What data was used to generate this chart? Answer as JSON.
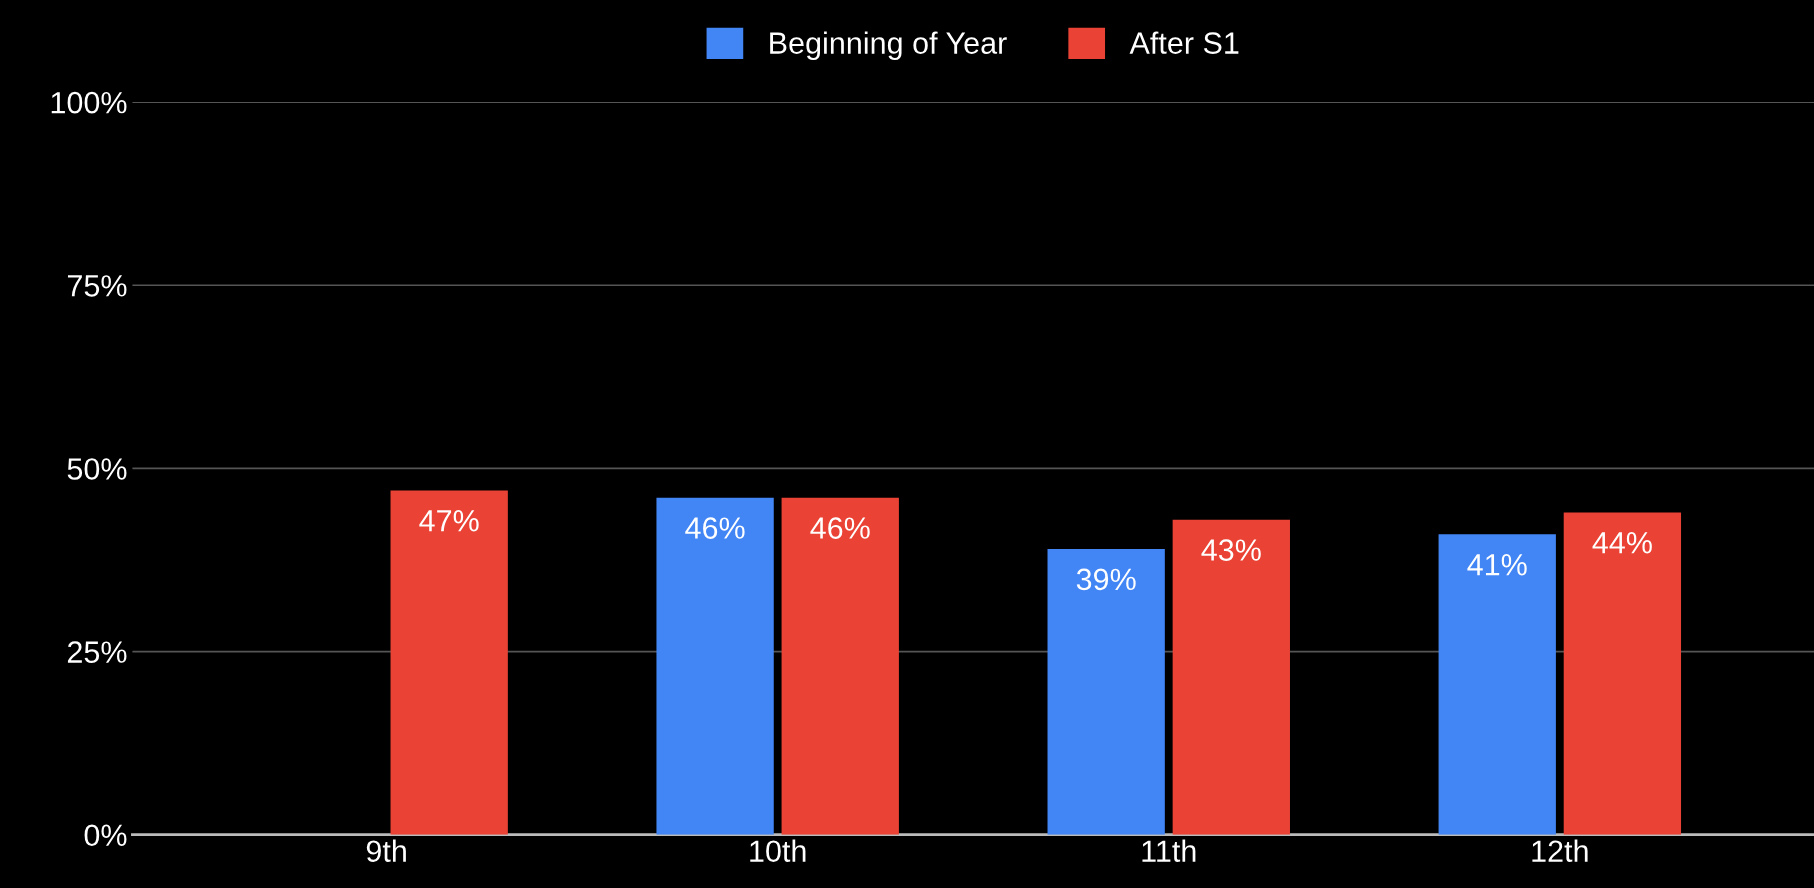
{
  "chart_data": {
    "type": "bar",
    "categories": [
      "9th",
      "10th",
      "11th",
      "12th"
    ],
    "series": [
      {
        "name": "Beginning of Year",
        "color": "#4285f4",
        "values": [
          null,
          46,
          39,
          41
        ],
        "value_labels": [
          null,
          "46%",
          "39%",
          "41%"
        ]
      },
      {
        "name": "After S1",
        "color": "#ea4335",
        "values": [
          47,
          46,
          43,
          44
        ],
        "value_labels": [
          "47%",
          "46%",
          "43%",
          "44%"
        ]
      }
    ],
    "ylim": [
      0,
      100
    ],
    "yticks": [
      {
        "value": 0,
        "label": "0%"
      },
      {
        "value": 25,
        "label": "25%"
      },
      {
        "value": 50,
        "label": "50%"
      },
      {
        "value": 75,
        "label": "75%"
      },
      {
        "value": 100,
        "label": "100%"
      }
    ],
    "grid": "y",
    "legend": "top"
  }
}
